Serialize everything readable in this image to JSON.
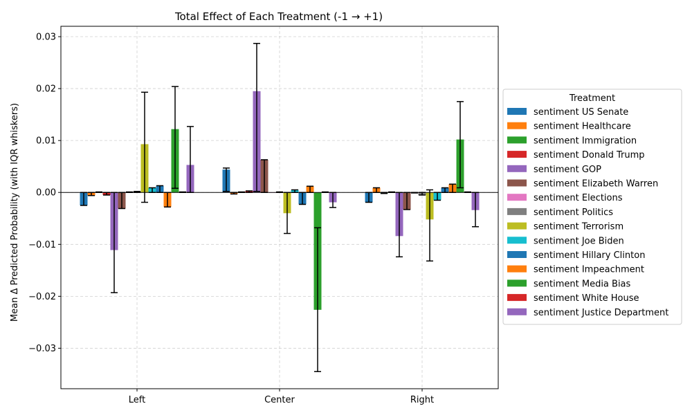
{
  "chart_data": {
    "type": "bar",
    "title": "Total Effect of Each Treatment (-1 → +1)",
    "ylabel": "Mean Δ Predicted Probability (with IQR whiskers)",
    "xlabel": "",
    "categories": [
      "Left",
      "Center",
      "Right"
    ],
    "ylim": [
      -0.0378,
      0.032
    ],
    "yticks": [
      -0.03,
      -0.02,
      -0.01,
      0.0,
      0.01,
      0.02,
      0.03
    ],
    "ytick_labels": [
      "−0.03",
      "−0.02",
      "−0.01",
      "0.00",
      "0.01",
      "0.02",
      "0.03"
    ],
    "grid": true,
    "legend_title": "Treatment",
    "legend_position": "right",
    "series": [
      {
        "name": "sentiment US Senate",
        "color": "#1f77b4",
        "values": [
          -0.0025,
          0.0044,
          -0.0019
        ],
        "err_low": [
          -0.0025,
          0.0002,
          -0.0019
        ],
        "err_high": [
          0.0,
          0.0047,
          0.0
        ]
      },
      {
        "name": "sentiment Healthcare",
        "color": "#ff7f0e",
        "values": [
          -0.0006,
          -0.0003,
          0.0009
        ],
        "err_low": [
          -0.0006,
          -0.0003,
          0.0
        ],
        "err_high": [
          0.0,
          0.0,
          0.0009
        ]
      },
      {
        "name": "sentiment Immigration",
        "color": "#2ca02c",
        "values": [
          0.0001,
          0.0001,
          -0.0002
        ],
        "err_low": [
          0.0,
          0.0,
          -0.0002
        ],
        "err_high": [
          0.0001,
          0.0001,
          0.0
        ]
      },
      {
        "name": "sentiment Donald Trump",
        "color": "#d62728",
        "values": [
          -0.0005,
          0.0003,
          0.0001
        ],
        "err_low": [
          -0.0005,
          0.0,
          0.0
        ],
        "err_high": [
          0.0,
          0.0003,
          0.0001
        ]
      },
      {
        "name": "sentiment GOP",
        "color": "#9467bd",
        "values": [
          -0.0111,
          0.0195,
          -0.0084
        ],
        "err_low": [
          -0.0193,
          0.0002,
          -0.0124
        ],
        "err_high": [
          0.0,
          0.0287,
          0.0
        ]
      },
      {
        "name": "sentiment Elizabeth Warren",
        "color": "#8c564b",
        "values": [
          -0.0031,
          0.0063,
          -0.0033
        ],
        "err_low": [
          -0.0031,
          0.0,
          -0.0033
        ],
        "err_high": [
          0.0,
          0.0063,
          0.0
        ]
      },
      {
        "name": "sentiment Elections",
        "color": "#e377c2",
        "values": [
          0.0001,
          0.0,
          -0.0001
        ],
        "err_low": [
          0.0,
          0.0,
          -0.0001
        ],
        "err_high": [
          0.0001,
          0.0,
          0.0
        ]
      },
      {
        "name": "sentiment Politics",
        "color": "#7f7f7f",
        "values": [
          0.0002,
          0.0001,
          -0.0005
        ],
        "err_low": [
          0.0,
          0.0,
          -0.0005
        ],
        "err_high": [
          0.0002,
          0.0001,
          0.0
        ]
      },
      {
        "name": "sentiment Terrorism",
        "color": "#bcbd22",
        "values": [
          0.0093,
          -0.004,
          -0.0052
        ],
        "err_low": [
          -0.0019,
          -0.0079,
          -0.0132
        ],
        "err_high": [
          0.0193,
          0.0,
          0.0005
        ]
      },
      {
        "name": "sentiment Joe Biden",
        "color": "#17becf",
        "values": [
          0.0009,
          0.0005,
          -0.0015
        ],
        "err_low": [
          0.0,
          0.0,
          -0.0015
        ],
        "err_high": [
          0.0009,
          0.0005,
          0.0
        ]
      },
      {
        "name": "sentiment Hillary Clinton",
        "color": "#1f77b4",
        "values": [
          0.0013,
          -0.0023,
          0.0009
        ],
        "err_low": [
          0.0,
          -0.0023,
          0.0
        ],
        "err_high": [
          0.0013,
          0.0,
          0.0009
        ]
      },
      {
        "name": "sentiment Impeachment",
        "color": "#ff7f0e",
        "values": [
          -0.0028,
          0.0012,
          0.0016
        ],
        "err_low": [
          -0.0028,
          0.0,
          0.0
        ],
        "err_high": [
          0.0,
          0.0012,
          0.0016
        ]
      },
      {
        "name": "sentiment Media Bias",
        "color": "#2ca02c",
        "values": [
          0.0122,
          -0.0226,
          0.0102
        ],
        "err_low": [
          0.0008,
          -0.0345,
          0.0009
        ],
        "err_high": [
          0.0204,
          -0.0068,
          0.0175
        ]
      },
      {
        "name": "sentiment White House",
        "color": "#d62728",
        "values": [
          0.0001,
          0.0001,
          0.0001
        ],
        "err_low": [
          0.0,
          0.0,
          0.0
        ],
        "err_high": [
          0.0001,
          0.0001,
          0.0001
        ]
      },
      {
        "name": "sentiment Justice Department",
        "color": "#9467bd",
        "values": [
          0.0053,
          -0.0019,
          -0.0034
        ],
        "err_low": [
          0.0,
          -0.0029,
          -0.0066
        ],
        "err_high": [
          0.0127,
          0.0,
          0.0
        ]
      }
    ]
  }
}
